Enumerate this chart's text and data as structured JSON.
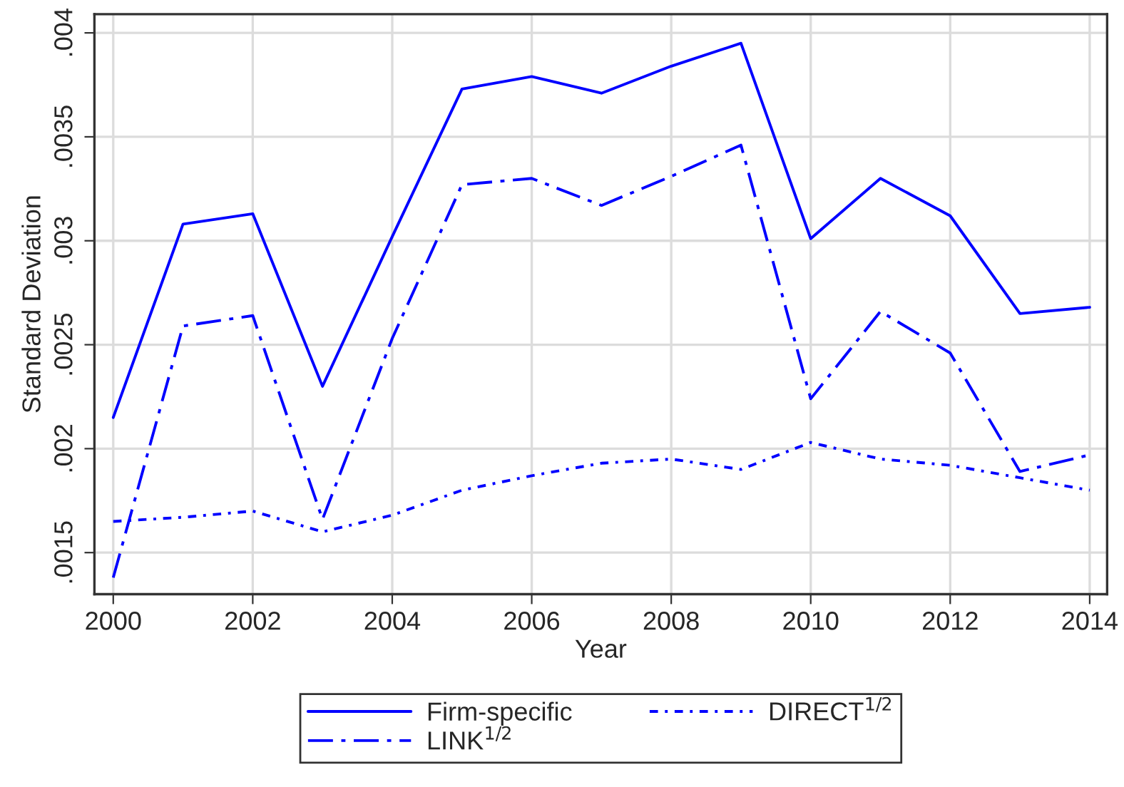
{
  "chart_data": {
    "type": "line",
    "xlabel": "Year",
    "ylabel": "Standard Deviation",
    "x": [
      2000,
      2001,
      2002,
      2003,
      2004,
      2005,
      2006,
      2007,
      2008,
      2009,
      2010,
      2011,
      2012,
      2013,
      2014
    ],
    "series": [
      {
        "name": "Firm-specific",
        "color": "#0000ff",
        "line_style": "solid",
        "values": [
          0.00215,
          0.00308,
          0.00313,
          0.0023,
          0.00302,
          0.00373,
          0.00379,
          0.00371,
          0.00384,
          0.00395,
          0.00301,
          0.0033,
          0.00312,
          0.00265,
          0.00268
        ]
      },
      {
        "name": "LINK$^{1/2}$",
        "color": "#0000ff",
        "line_style": "dashed",
        "values": [
          0.00138,
          0.00259,
          0.00264,
          0.00166,
          0.00253,
          0.00327,
          0.0033,
          0.00317,
          0.00331,
          0.00346,
          0.00224,
          0.00266,
          0.00246,
          0.00189,
          0.00197
        ]
      },
      {
        "name": "DIRECT$^{1/2}$",
        "color": "#0000ff",
        "line_style": "dotted",
        "values": [
          0.00165,
          0.00167,
          0.0017,
          0.0016,
          0.00168,
          0.0018,
          0.00187,
          0.00193,
          0.00195,
          0.0019,
          0.00203,
          0.00195,
          0.00192,
          0.00186,
          0.0018
        ]
      }
    ],
    "xlim": [
      1999.73,
      2014.25
    ],
    "xticks": [
      2000,
      2002,
      2004,
      2006,
      2008,
      2010,
      2012,
      2014
    ],
    "ylim": [
      0.0013,
      0.00409
    ],
    "yticks": [
      {
        "value": 0.0015,
        "label": ".0015"
      },
      {
        "value": 0.002,
        "label": ".002"
      },
      {
        "value": 0.0025,
        "label": ".0025"
      },
      {
        "value": 0.003,
        "label": ".003"
      },
      {
        "value": 0.0035,
        "label": ".0035"
      },
      {
        "value": 0.004,
        "label": ".004"
      }
    ],
    "grid": true,
    "legend": "bottom",
    "marker": "none"
  }
}
